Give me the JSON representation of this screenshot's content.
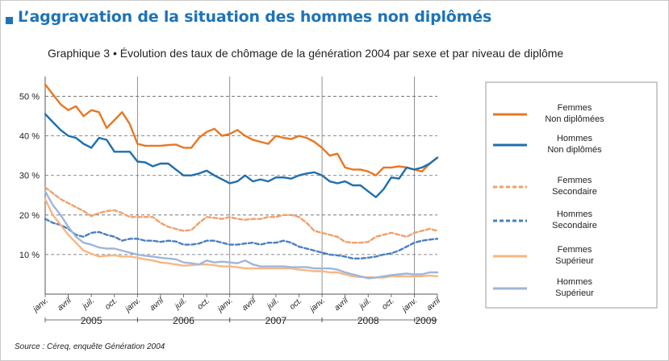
{
  "heading": "L’aggravation de la situation des hommes non diplômés",
  "subtitle": "Graphique 3 • Évolution des taux de chômage de la génération 2004 par sexe et par niveau de diplôme",
  "source": "Source : Céreq, enquête Génération 2004",
  "colors": {
    "accent": "#1e73b8",
    "orange": "#e87722",
    "blue": "#1f6fad",
    "light_orange": "#f6b783",
    "light_blue": "#9fb6da"
  },
  "chart_data": {
    "type": "line",
    "ylim": [
      0,
      55
    ],
    "yticks": [
      10,
      20,
      30,
      40,
      50
    ],
    "ytick_labels": [
      "10 %",
      "20 %",
      "30 %",
      "40 %",
      "50 %"
    ],
    "x_month_labels": [
      "janv.",
      "avril",
      "juil.",
      "oct.",
      "janv.",
      "avril",
      "juil.",
      "oct.",
      "janv.",
      "avril",
      "juil.",
      "oct.",
      "janv.",
      "avril",
      "juil.",
      "oct.",
      "janv.",
      "avril"
    ],
    "x_year_labels": [
      "2005",
      "2006",
      "2007",
      "2008",
      "2009"
    ],
    "x": [
      "2005-01",
      "2005-02",
      "2005-03",
      "2005-04",
      "2005-05",
      "2005-06",
      "2005-07",
      "2005-08",
      "2005-09",
      "2005-10",
      "2005-11",
      "2005-12",
      "2006-01",
      "2006-02",
      "2006-03",
      "2006-04",
      "2006-05",
      "2006-06",
      "2006-07",
      "2006-08",
      "2006-09",
      "2006-10",
      "2006-11",
      "2006-12",
      "2007-01",
      "2007-02",
      "2007-03",
      "2007-04",
      "2007-05",
      "2007-06",
      "2007-07",
      "2007-08",
      "2007-09",
      "2007-10",
      "2007-11",
      "2007-12",
      "2008-01",
      "2008-02",
      "2008-03",
      "2008-04",
      "2008-05",
      "2008-06",
      "2008-07",
      "2008-08",
      "2008-09",
      "2008-10",
      "2008-11",
      "2008-12",
      "2009-01",
      "2009-02",
      "2009-03",
      "2009-04"
    ],
    "series": [
      {
        "name": "Femmes Non diplômées",
        "color": "#e87722",
        "dash": false,
        "values": [
          53,
          50.5,
          48,
          46.5,
          47.5,
          45,
          46.5,
          46,
          42,
          44,
          46,
          43,
          38,
          37.5,
          37.5,
          37.5,
          37.7,
          37.8,
          37,
          37,
          39.5,
          41,
          41.8,
          40,
          40.5,
          41.5,
          40,
          39,
          38.5,
          38,
          40,
          39.5,
          39.2,
          40,
          39.5,
          38.5,
          37,
          35,
          35.5,
          32,
          31.5,
          31.5,
          31,
          30,
          32,
          32,
          32.3,
          32,
          31.5,
          31,
          33,
          34.5
        ]
      },
      {
        "name": "Hommes Non diplômés",
        "color": "#1f6fad",
        "dash": false,
        "values": [
          45.5,
          43.5,
          41.5,
          40,
          39.5,
          38,
          37,
          39.5,
          39,
          36,
          36,
          36,
          33.5,
          33.3,
          32.3,
          33,
          33,
          31.5,
          30,
          30,
          30.5,
          31.2,
          30,
          29,
          28,
          28.5,
          30,
          28.5,
          29,
          28.5,
          29.5,
          29.5,
          29.2,
          30,
          30.5,
          30.8,
          30,
          28.5,
          28,
          28.5,
          27.5,
          27.5,
          26,
          24.5,
          26.5,
          29.5,
          29.2,
          32,
          31.5,
          32,
          33,
          34.5
        ]
      },
      {
        "name": "Femmes Secondaire",
        "color": "#f0a06a",
        "dash": true,
        "values": [
          27,
          25.5,
          24,
          23,
          22,
          21,
          19.7,
          20.5,
          21,
          21.2,
          20.5,
          19.5,
          19.5,
          19.5,
          19.5,
          18,
          17,
          16.5,
          16,
          16.2,
          18,
          19.5,
          19.3,
          19,
          19.5,
          19,
          18.8,
          19,
          19,
          19.5,
          19.5,
          20,
          20,
          19.5,
          18,
          16,
          15.5,
          15,
          14.5,
          13.2,
          13,
          13,
          13.2,
          14.5,
          15,
          15.5,
          15,
          14.5,
          15.5,
          16,
          16.5,
          16
        ]
      },
      {
        "name": "Hommes Secondaire",
        "color": "#4a7fc1",
        "dash": true,
        "values": [
          19,
          18,
          17.5,
          16.5,
          15,
          14.5,
          15.5,
          15.7,
          15,
          14.5,
          13.5,
          14,
          14,
          13.5,
          13.5,
          13.2,
          13.5,
          13.3,
          12.5,
          12.5,
          12.8,
          13.5,
          13.5,
          13,
          12.5,
          12.5,
          12.8,
          13,
          12.5,
          13,
          13,
          13.5,
          13,
          12,
          11.5,
          11,
          10.5,
          10,
          9.8,
          9.5,
          9,
          9,
          9.2,
          9.5,
          10,
          10.3,
          11,
          12,
          13,
          13.5,
          13.8,
          14
        ]
      },
      {
        "name": "Femmes Supérieur",
        "color": "#f6b783",
        "dash": false,
        "values": [
          24,
          20,
          17.5,
          15,
          13,
          11,
          10.2,
          9.5,
          9.7,
          9.8,
          9.5,
          9.5,
          9.2,
          8.8,
          8.5,
          8,
          7.8,
          7.5,
          7.2,
          7.3,
          7.5,
          7.5,
          7.3,
          7,
          7,
          6.8,
          6.5,
          6.5,
          6.5,
          6.5,
          6.5,
          6.5,
          6.5,
          6.2,
          6,
          5.8,
          5.8,
          5.5,
          5.5,
          5,
          4.5,
          4.3,
          4.3,
          4.2,
          4.2,
          4.5,
          4.5,
          4.5,
          4.5,
          4.5,
          4.7,
          4.5
        ]
      },
      {
        "name": "Hommes Supérieur",
        "color": "#9fb6da",
        "dash": false,
        "values": [
          26,
          22.5,
          20,
          17,
          14.5,
          13,
          12.5,
          11.8,
          11.5,
          11.5,
          11,
          10.5,
          10,
          9.7,
          9.5,
          9.2,
          9,
          8.8,
          8,
          7.8,
          7.5,
          8.5,
          8,
          8.2,
          8,
          7.8,
          8.5,
          7.5,
          7,
          7,
          7,
          7,
          6.8,
          6.8,
          6.8,
          6.5,
          6.5,
          6.5,
          6.2,
          5.5,
          5,
          4.5,
          4,
          4.2,
          4.5,
          4.8,
          5,
          5.2,
          5,
          5,
          5.5,
          5.5
        ]
      }
    ],
    "legend": [
      {
        "label": [
          "Femmes",
          "Non diplômées"
        ],
        "color": "#e87722",
        "dash": false
      },
      {
        "label": [
          "Hommes",
          "Non diplômés"
        ],
        "color": "#1f6fad",
        "dash": false
      },
      {
        "label": [
          "Femmes",
          "Secondaire"
        ],
        "color": "#f0a06a",
        "dash": true
      },
      {
        "label": [
          "Hommes",
          "Secondaire"
        ],
        "color": "#4a7fc1",
        "dash": true
      },
      {
        "label": [
          "Femmes",
          "Supérieur"
        ],
        "color": "#f6b783",
        "dash": false
      },
      {
        "label": [
          "Hommes",
          "Supérieur"
        ],
        "color": "#9fb6da",
        "dash": false
      }
    ],
    "legend_placement": "right",
    "grid": "horizontal-dashed"
  }
}
